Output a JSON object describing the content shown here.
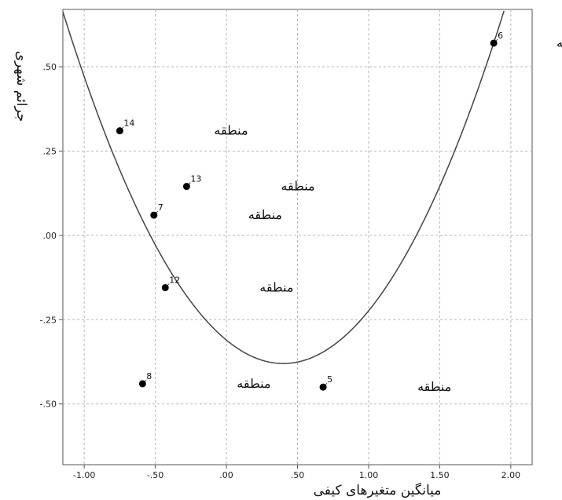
{
  "chart_data": {
    "type": "scatter",
    "title": "",
    "xlabel": "میانگین متغیرهای کیفی",
    "ylabel": "جرائم شهری",
    "xlim": [
      -1.15,
      2.15
    ],
    "ylim": [
      -0.68,
      0.67
    ],
    "x_ticks": [
      -1.0,
      -0.5,
      0.0,
      0.5,
      1.0,
      1.5,
      2.0
    ],
    "x_tick_labels": [
      "-1.00",
      "-.50",
      ".00",
      ".50",
      "1.00",
      "1.50",
      "2.00"
    ],
    "y_ticks": [
      0.5,
      0.25,
      0.0,
      -0.25,
      -0.5
    ],
    "y_tick_labels": [
      ".50",
      ".25",
      ".00",
      "-.25",
      "-.50"
    ],
    "grid": true,
    "points": [
      {
        "label": "14",
        "x": -0.75,
        "y": 0.31,
        "annotation": "منطقه"
      },
      {
        "label": "13",
        "x": -0.28,
        "y": 0.145,
        "annotation": "منطقه"
      },
      {
        "label": "7",
        "x": -0.51,
        "y": 0.06,
        "annotation": "منطقه"
      },
      {
        "label": "12",
        "x": -0.43,
        "y": -0.155,
        "annotation": "منطقه"
      },
      {
        "label": "8",
        "x": -0.59,
        "y": -0.44,
        "annotation": "منطقه"
      },
      {
        "label": "5",
        "x": 0.68,
        "y": -0.45,
        "annotation": "منطقه"
      },
      {
        "label": "6",
        "x": 1.88,
        "y": 0.57,
        "annotation": "منطقه"
      }
    ],
    "fit_curve": {
      "type": "quadratic",
      "vertex_x": 0.4,
      "vertex_y": -0.38,
      "a": 0.434
    }
  }
}
